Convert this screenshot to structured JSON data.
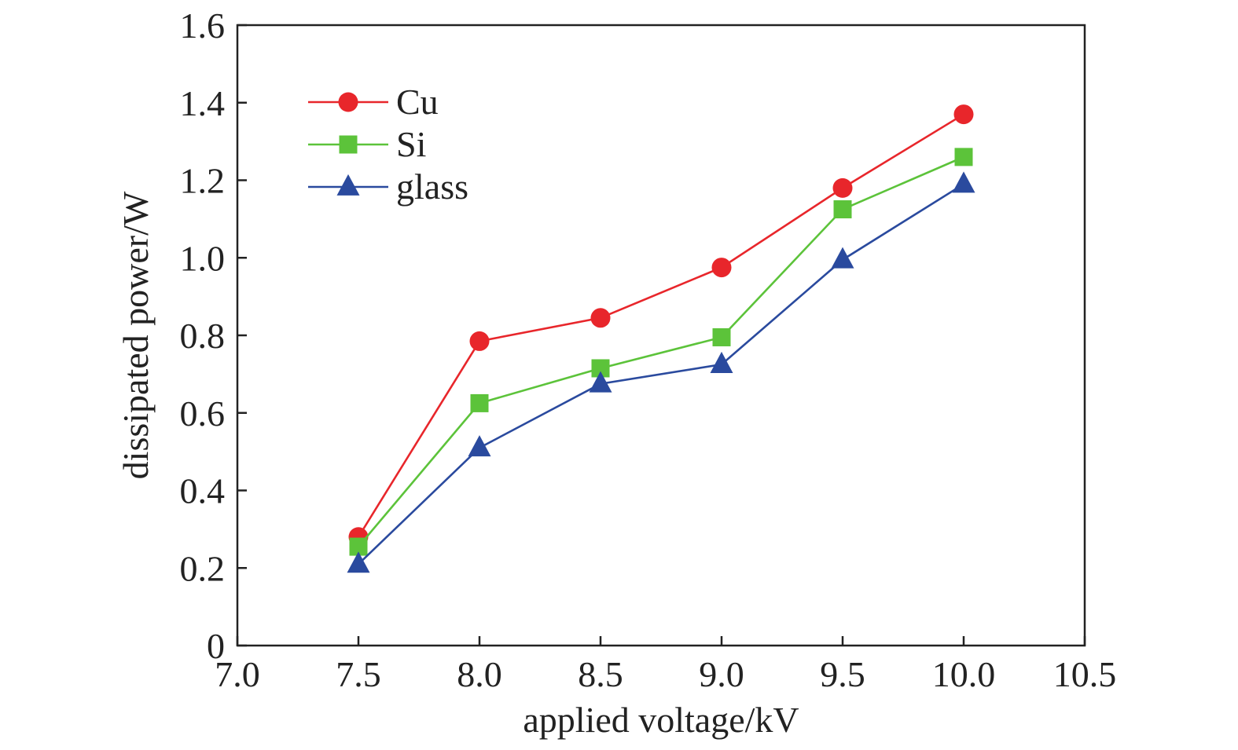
{
  "chart_data": {
    "type": "line",
    "title": "",
    "xlabel": "applied voltage/kV",
    "ylabel": "dissipated power/W",
    "xlim": [
      7.0,
      10.5
    ],
    "ylim": [
      0,
      1.6
    ],
    "x": [
      7.5,
      8.0,
      8.5,
      9.0,
      9.5,
      10.0
    ],
    "xticks": [
      "7.0",
      "7.5",
      "8.0",
      "8.5",
      "9.0",
      "9.5",
      "10.0",
      "10.5"
    ],
    "yticks": [
      "0",
      "0.2",
      "0.4",
      "0.6",
      "0.8",
      "1.0",
      "1.2",
      "1.4",
      "1.6"
    ],
    "grid": false,
    "legend_position": "top-left",
    "series": [
      {
        "name": "Cu",
        "values": [
          0.28,
          0.785,
          0.845,
          0.975,
          1.18,
          1.37
        ],
        "color": "#e8262b",
        "marker": "circle"
      },
      {
        "name": "Si",
        "values": [
          0.255,
          0.625,
          0.715,
          0.795,
          1.125,
          1.26
        ],
        "color": "#5cc33a",
        "marker": "square"
      },
      {
        "name": "glass",
        "values": [
          0.21,
          0.51,
          0.675,
          0.725,
          0.995,
          1.19
        ],
        "color": "#2a4a9e",
        "marker": "triangle"
      }
    ]
  }
}
